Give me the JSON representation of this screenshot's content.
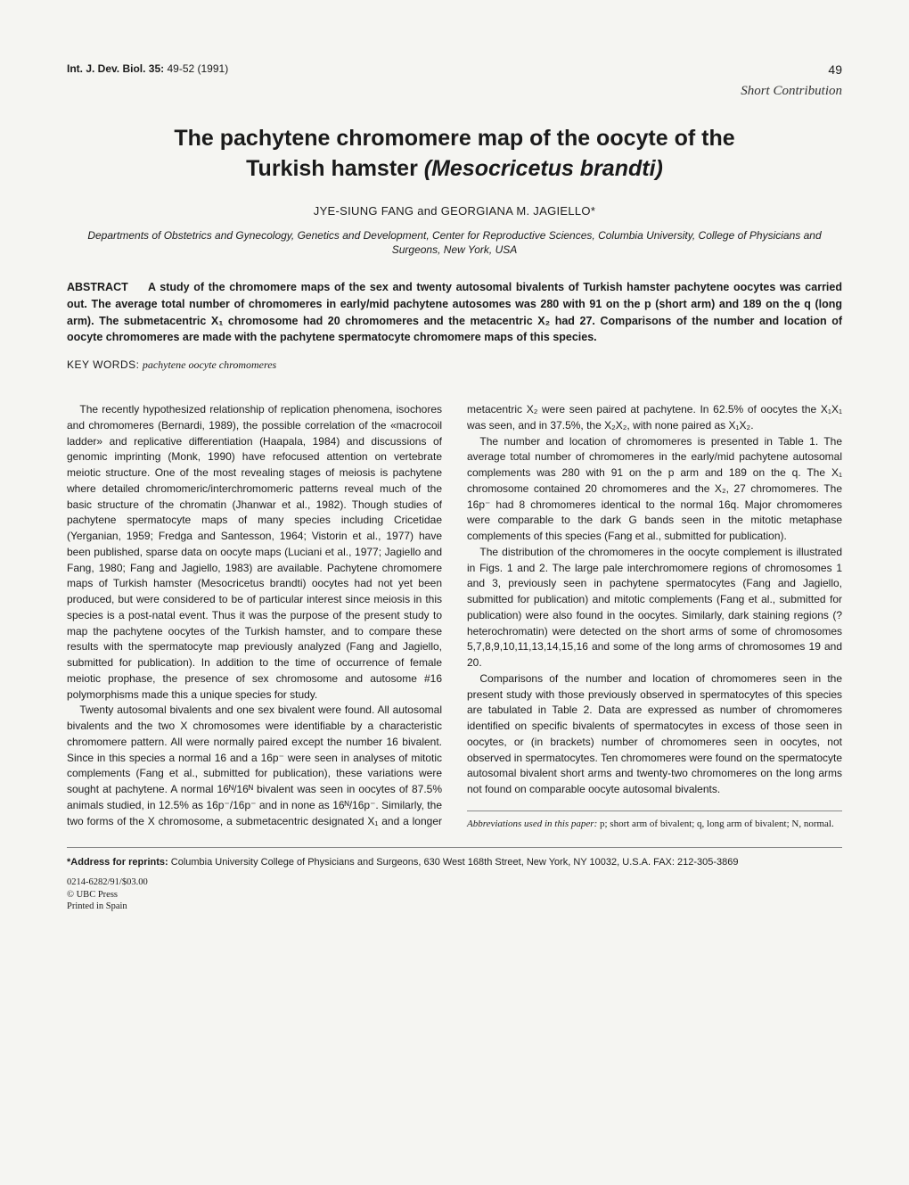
{
  "header": {
    "journal": "Int. J. Dev. Biol. 35:",
    "pages": "49-52 (1991)",
    "page_number": "49"
  },
  "article_type": "Short Contribution",
  "title_line1": "The pachytene chromomere map of the oocyte of the",
  "title_line2_pre": "Turkish hamster",
  "title_line2_species": "(Mesocricetus brandti)",
  "authors": "JYE-SIUNG FANG and GEORGIANA M. JAGIELLO*",
  "affiliation": "Departments of Obstetrics and Gynecology, Genetics and Development, Center for Reproductive Sciences, Columbia University, College of Physicians and Surgeons, New York, USA",
  "abstract_label": "ABSTRACT",
  "abstract_text": "A study of the chromomere maps of the sex and twenty autosomal bivalents of Turkish hamster pachytene oocytes was carried out. The average total number of chromomeres in early/mid pachytene autosomes was 280 with 91 on the p (short arm) and 189 on the q (long arm). The submetacentric X₁ chromosome had 20 chromomeres and the metacentric X₂ had 27. Comparisons of the number and location of oocyte chromomeres are made with the pachytene spermatocyte chromomere maps of this species.",
  "keywords_label": "KEY WORDS:",
  "keywords_text": "pachytene oocyte chromomeres",
  "body": {
    "p1": "The recently hypothesized relationship of replication phenomena, isochores and chromomeres (Bernardi, 1989), the possible correlation of the «macrocoil ladder» and replicative differentiation (Haapala, 1984) and discussions of genomic imprinting (Monk, 1990) have refocused attention on vertebrate meiotic structure. One of the most revealing stages of meiosis is pachytene where detailed chromomeric/interchromomeric patterns reveal much of the basic structure of the chromatin (Jhanwar et al., 1982). Though studies of pachytene spermatocyte maps of many species including Cricetidae (Yerganian, 1959; Fredga and Santesson, 1964; Vistorin et al., 1977) have been published, sparse data on oocyte maps (Luciani et al., 1977; Jagiello and Fang, 1980; Fang and Jagiello, 1983) are available. Pachytene chromomere maps of Turkish hamster (Mesocricetus brandti) oocytes had not yet been produced, but were considered to be of particular interest since meiosis in this species is a post-natal event. Thus it was the purpose of the present study to map the pachytene oocytes of the Turkish hamster, and to compare these results with the spermatocyte map previously analyzed (Fang and Jagiello, submitted for publication). In addition to the time of occurrence of female meiotic prophase, the presence of sex chromosome and autosome #16 polymorphisms made this a unique species for study.",
    "p2": "Twenty autosomal bivalents and one sex bivalent were found. All autosomal bivalents and the two X chromosomes were identifiable by a characteristic chromomere pattern. All were normally paired except the number 16 bivalent. Since in this species a normal 16 and a 16p⁻ were seen in analyses of mitotic complements (Fang et al., submitted for publication), these variations were sought at pachytene. A normal 16ᴺ/16ᴺ bivalent was seen in oocytes of 87.5% animals studied, in 12.5% as 16p⁻/16p⁻ and in none as 16ᴺ/16p⁻. Similarly, the two forms of the X chromosome, a submetacentric designated X₁ and a longer metacentric X₂ were seen paired at pachytene. In 62.5% of oocytes the X₁X₁ was seen, and in 37.5%, the X₂X₂, with none paired as X₁X₂.",
    "p3": "The number and location of chromomeres is presented in Table 1. The average total number of chromomeres in the early/mid pachytene autosomal complements was 280 with 91 on the p arm and 189 on the q. The X₁ chromosome contained 20 chromomeres and the X₂, 27 chromomeres. The 16p⁻ had 8 chromomeres identical to the normal 16q. Major chromomeres were comparable to the dark G bands seen in the mitotic metaphase complements of this species (Fang et al., submitted for publication).",
    "p4": "The distribution of the chromomeres in the oocyte complement is illustrated in Figs. 1 and 2. The large pale interchromomere regions of chromosomes 1 and 3, previously seen in pachytene spermatocytes (Fang and Jagiello, submitted for publication) and mitotic complements (Fang et al., submitted for publication) were also found in the oocytes. Similarly, dark staining regions (? heterochromatin) were detected on the short arms of some of chromosomes 5,7,8,9,10,11,13,14,15,16 and some of the long arms of chromosomes 19 and 20.",
    "p5": "Comparisons of the number and location of chromomeres seen in the present study with those previously observed in spermatocytes of this species are tabulated in Table 2. Data are expressed as number of chromomeres identified on specific bivalents of spermatocytes in excess of those seen in oocytes, or (in brackets) number of chromomeres seen in oocytes, not observed in spermatocytes. Ten chromomeres were found on the spermatocyte autosomal bivalent short arms and twenty-two chromomeres on the long arms not found on comparable oocyte autosomal bivalents."
  },
  "abbrev_label": "Abbreviations used in this paper:",
  "abbrev_text": "p; short arm of bivalent; q, long arm of bivalent; N, normal.",
  "reprint_label": "*Address for reprints:",
  "reprint_text": "Columbia University College of Physicians and Surgeons, 630 West 168th Street, New York, NY 10032, U.S.A. FAX: 212-305-3869",
  "issn": "0214-6282/91/$03.00",
  "publisher": "© UBC Press",
  "printed": "Printed in Spain"
}
